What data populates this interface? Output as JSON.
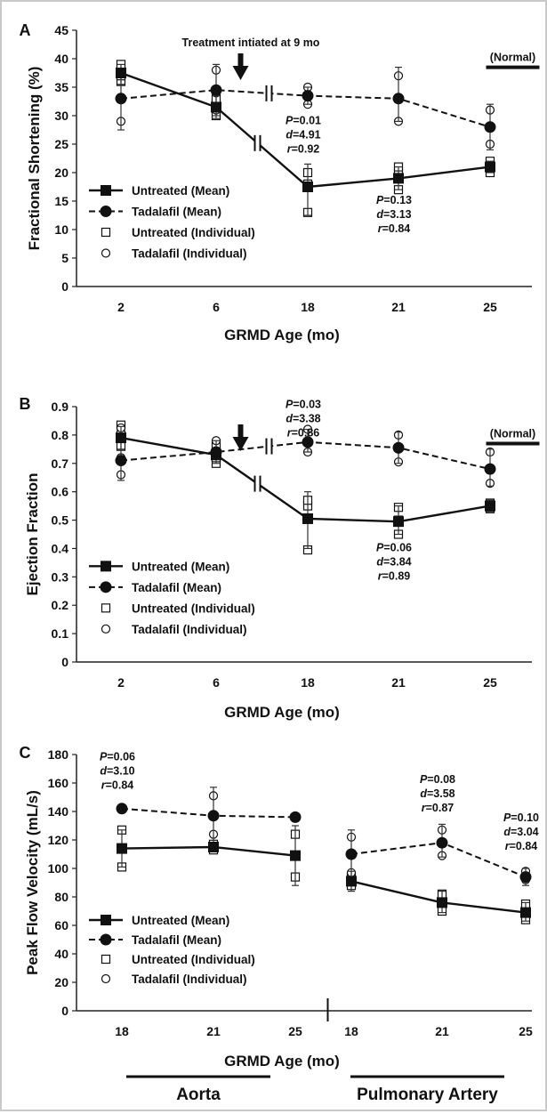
{
  "chart_data": [
    {
      "panel": "A",
      "type": "line",
      "xlabel": "GRMD Age (mo)",
      "ylabel": "Fractional Shortening (%)",
      "categories": [
        "2",
        "6",
        "18",
        "21",
        "25"
      ],
      "ylim": [
        0,
        45
      ],
      "yticks": [
        0,
        5,
        10,
        15,
        20,
        25,
        30,
        35,
        40,
        45
      ],
      "series": [
        {
          "name": "Untreated (Mean)",
          "style": "solid",
          "marker": "filled-square",
          "values": [
            37.5,
            31.5,
            17.5,
            19,
            21
          ],
          "err_lo": [
            35.5,
            29.5,
            12.5,
            17,
            20
          ],
          "err_hi": [
            39,
            33.5,
            21.5,
            21,
            22
          ]
        },
        {
          "name": "Tadalafil (Mean)",
          "style": "dashed",
          "marker": "filled-circle",
          "values": [
            33,
            34.5,
            33.5,
            33,
            28
          ],
          "err_lo": [
            27.5,
            30,
            32,
            29,
            24
          ],
          "err_hi": [
            37,
            39,
            35,
            38.5,
            32
          ]
        },
        {
          "name": "Untreated (Individual)",
          "style": "none",
          "marker": "open-square",
          "points": [
            [
              0,
              36
            ],
            [
              0,
              37
            ],
            [
              0,
              38
            ],
            [
              0,
              39
            ],
            [
              1,
              30
            ],
            [
              1,
              32
            ],
            [
              1,
              33
            ],
            [
              2,
              13
            ],
            [
              2,
              18
            ],
            [
              2,
              20
            ],
            [
              3,
              17
            ],
            [
              3,
              20
            ],
            [
              3,
              21
            ],
            [
              4,
              20
            ],
            [
              4,
              21
            ],
            [
              4,
              22
            ]
          ]
        },
        {
          "name": "Tadalafil (Individual)",
          "style": "none",
          "marker": "open-circle",
          "points": [
            [
              0,
              29
            ],
            [
              0,
              33
            ],
            [
              0,
              37.5
            ],
            [
              1,
              31
            ],
            [
              1,
              34
            ],
            [
              1,
              38
            ],
            [
              2,
              32
            ],
            [
              2,
              35
            ],
            [
              3,
              29
            ],
            [
              3,
              33
            ],
            [
              3,
              37
            ],
            [
              4,
              25
            ],
            [
              4,
              28
            ],
            [
              4,
              31
            ]
          ]
        }
      ],
      "legend_position": "bottom-left",
      "annotations": {
        "treatment": "Treatment intiated at 9 mo",
        "normal": "(Normal)",
        "normal_value": 38.5,
        "stats": [
          {
            "x_index": 2,
            "y": 28.5,
            "lines": [
              "P=0.01",
              "d=4.91",
              "r=0.92"
            ]
          },
          {
            "x_index": 3,
            "y": 14.5,
            "lines": [
              "P=0.13",
              "d=3.13",
              "r=0.84"
            ]
          }
        ]
      }
    },
    {
      "panel": "B",
      "type": "line",
      "xlabel": "GRMD Age (mo)",
      "ylabel": "Ejection Fraction",
      "categories": [
        "2",
        "6",
        "18",
        "21",
        "25"
      ],
      "ylim": [
        0,
        0.9
      ],
      "yticks": [
        0,
        0.1,
        0.2,
        0.3,
        0.4,
        0.5,
        0.6,
        0.7,
        0.8,
        0.9
      ],
      "series": [
        {
          "name": "Untreated (Mean)",
          "style": "solid",
          "marker": "filled-square",
          "values": [
            0.79,
            0.73,
            0.505,
            0.495,
            0.55
          ],
          "err_lo": [
            0.75,
            0.7,
            0.4,
            0.45,
            0.53
          ],
          "err_hi": [
            0.83,
            0.75,
            0.6,
            0.55,
            0.57
          ]
        },
        {
          "name": "Tadalafil (Mean)",
          "style": "dashed",
          "marker": "filled-circle",
          "values": [
            0.71,
            0.74,
            0.775,
            0.755,
            0.68
          ],
          "err_lo": [
            0.64,
            0.72,
            0.74,
            0.7,
            0.62
          ],
          "err_hi": [
            0.78,
            0.78,
            0.82,
            0.81,
            0.75
          ]
        },
        {
          "name": "Untreated (Individual)",
          "style": "none",
          "marker": "open-square",
          "points": [
            [
              0,
              0.76
            ],
            [
              0,
              0.8
            ],
            [
              0,
              0.835
            ],
            [
              1,
              0.7
            ],
            [
              1,
              0.72
            ],
            [
              1,
              0.76
            ],
            [
              2,
              0.395
            ],
            [
              2,
              0.55
            ],
            [
              2,
              0.57
            ],
            [
              3,
              0.45
            ],
            [
              3,
              0.5
            ],
            [
              3,
              0.545
            ],
            [
              4,
              0.54
            ],
            [
              4,
              0.56
            ]
          ]
        },
        {
          "name": "Tadalafil (Individual)",
          "style": "none",
          "marker": "open-circle",
          "points": [
            [
              0,
              0.66
            ],
            [
              0,
              0.72
            ],
            [
              0,
              0.825
            ],
            [
              1,
              0.74
            ],
            [
              1,
              0.78
            ],
            [
              2,
              0.74
            ],
            [
              2,
              0.78
            ],
            [
              2,
              0.82
            ],
            [
              3,
              0.705
            ],
            [
              3,
              0.75
            ],
            [
              3,
              0.8
            ],
            [
              4,
              0.63
            ],
            [
              4,
              0.68
            ],
            [
              4,
              0.74
            ]
          ]
        }
      ],
      "legend_position": "bottom-left",
      "annotations": {
        "normal": "(Normal)",
        "normal_value": 0.77,
        "stats": [
          {
            "x_index": 2,
            "y": 0.895,
            "lines": [
              "P=0.03",
              "d=3.38",
              "r=0.86"
            ]
          },
          {
            "x_index": 3,
            "y": 0.39,
            "lines": [
              "P=0.06",
              "d=3.84",
              "r=0.89"
            ]
          }
        ]
      }
    },
    {
      "panel": "C",
      "type": "line",
      "xlabel": "GRMD Age (mo)",
      "ylabel": "Peak Flow Velocity (mL/s)",
      "categories": [
        "18",
        "21",
        "25",
        "18",
        "21",
        "25"
      ],
      "groups": [
        {
          "label": "Aorta",
          "indices": [
            0,
            1,
            2
          ]
        },
        {
          "label": "Pulmonary Artery",
          "indices": [
            3,
            4,
            5
          ]
        }
      ],
      "ylim": [
        0,
        180
      ],
      "yticks": [
        0,
        20,
        40,
        60,
        80,
        100,
        120,
        140,
        160,
        180
      ],
      "series": [
        {
          "name": "Untreated (Mean)",
          "style": "solid",
          "marker": "filled-square",
          "values": [
            114,
            115,
            109,
            91,
            76,
            69
          ],
          "err_lo": [
            101,
            112,
            88,
            84,
            69,
            63
          ],
          "err_hi": [
            127,
            118,
            130,
            98,
            84,
            76
          ]
        },
        {
          "name": "Tadalafil (Mean)",
          "style": "dashed",
          "marker": "filled-circle",
          "values": [
            142,
            137,
            136,
            110,
            118,
            94
          ],
          "err_lo": [
            142,
            118,
            136,
            90,
            108,
            88
          ],
          "err_hi": [
            142,
            157,
            136,
            127,
            131,
            100
          ]
        },
        {
          "name": "Untreated (Individual)",
          "style": "none",
          "marker": "open-square",
          "points": [
            [
              0,
              101
            ],
            [
              0,
              114
            ],
            [
              0,
              127
            ],
            [
              1,
              113
            ],
            [
              1,
              117
            ],
            [
              2,
              94
            ],
            [
              2,
              109
            ],
            [
              2,
              124
            ],
            [
              3,
              88
            ],
            [
              3,
              94
            ],
            [
              4,
              70
            ],
            [
              4,
              77
            ],
            [
              4,
              82
            ],
            [
              5,
              64
            ],
            [
              5,
              69
            ],
            [
              5,
              75
            ]
          ]
        },
        {
          "name": "Tadalafil (Individual)",
          "style": "none",
          "marker": "open-circle",
          "points": [
            [
              0,
              142
            ],
            [
              1,
              124
            ],
            [
              1,
              151
            ],
            [
              2,
              136
            ],
            [
              3,
              97
            ],
            [
              3,
              122
            ],
            [
              4,
              109
            ],
            [
              4,
              127
            ],
            [
              5,
              92
            ],
            [
              5,
              98
            ]
          ]
        }
      ],
      "legend_position": "bottom-left",
      "annotations": {
        "stats": [
          {
            "x_index": 0,
            "y": 176,
            "lines": [
              "P=0.06",
              "d=3.10",
              "r=0.84"
            ]
          },
          {
            "x_index": 4,
            "y": 160,
            "lines": [
              "P=0.08",
              "d=3.58",
              "r=0.87"
            ]
          },
          {
            "x_index": 5,
            "y": 133,
            "lines": [
              "P=0.10",
              "d=3.04",
              "r=0.84"
            ]
          }
        ]
      }
    }
  ]
}
